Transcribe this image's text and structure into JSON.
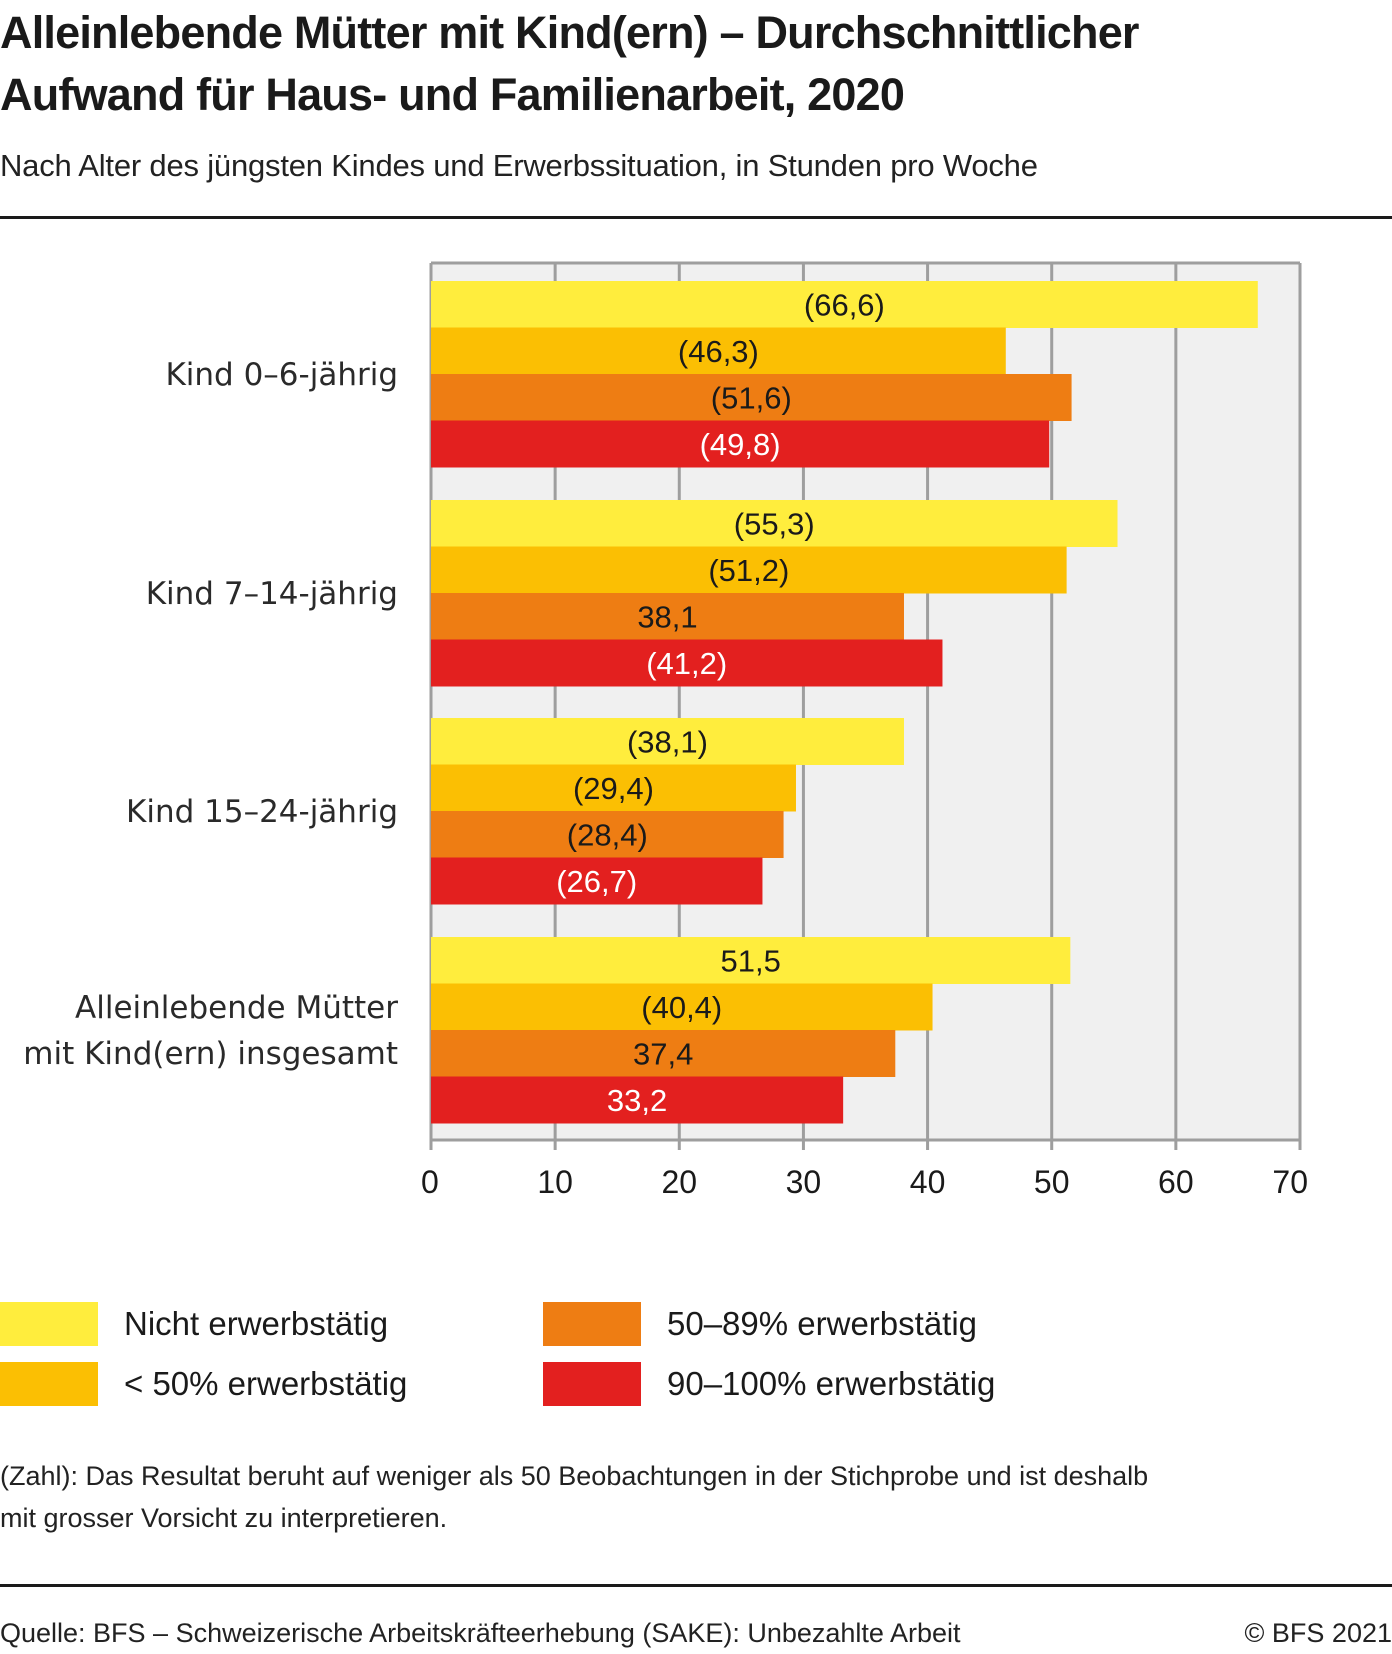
{
  "header": {
    "title_line1": "Alleinlebende Mütter mit Kind(ern) – Durchschnittlicher",
    "title_line2": "Aufwand für Haus- und Familienarbeit, 2020",
    "subtitle": "Nach Alter des jüngsten Kindes und Erwerbssituation, in Stunden pro Woche"
  },
  "chart_data": {
    "type": "bar",
    "orientation": "horizontal",
    "title": "Alleinlebende Mütter mit Kind(ern) – Durchschnittlicher Aufwand für Haus- und Familienarbeit, 2020",
    "subtitle": "Nach Alter des jüngsten Kindes und Erwerbssituation, in Stunden pro Woche",
    "xlabel": "",
    "ylabel": "",
    "xlim": [
      0,
      70
    ],
    "xticks": [
      0,
      10,
      20,
      30,
      40,
      50,
      60,
      70
    ],
    "grid": true,
    "legend_position": "bottom",
    "categories": [
      [
        "Kind 0–6-jährig"
      ],
      [
        "Kind 7–14-jährig"
      ],
      [
        "Kind 15–24-jährig"
      ],
      [
        "Alleinlebende Mütter",
        "mit Kind(ern) insgesamt"
      ]
    ],
    "series": [
      {
        "name": "Nicht erwerbstätig",
        "color": "#FFED3D",
        "label_color": "#1a1a1a",
        "values": [
          66.6,
          55.3,
          38.1,
          51.5
        ],
        "labels": [
          "(66,6)",
          "(55,3)",
          "(38,1)",
          "51,5"
        ]
      },
      {
        "name": "< 50% erwerbstätig",
        "color": "#FBBF03",
        "label_color": "#1a1a1a",
        "values": [
          46.3,
          51.2,
          29.4,
          40.4
        ],
        "labels": [
          "(46,3)",
          "(51,2)",
          "(29,4)",
          "(40,4)"
        ]
      },
      {
        "name": "50–89% erwerbstätig",
        "color": "#EE7D13",
        "label_color": "#1a1a1a",
        "values": [
          51.6,
          38.1,
          28.4,
          37.4
        ],
        "labels": [
          "(51,6)",
          "38,1",
          "(28,4)",
          "37,4"
        ]
      },
      {
        "name": "90–100% erwerbstätig",
        "color": "#E3201F",
        "label_color": "#ffffff",
        "values": [
          49.8,
          41.2,
          26.7,
          33.2
        ],
        "labels": [
          "(49,8)",
          "(41,2)",
          "(26,7)",
          "33,2"
        ]
      }
    ],
    "plot_background": "#F0F0F0",
    "grid_color": "#9E9E9E"
  },
  "legend": {
    "items": [
      {
        "label": "Nicht erwerbstätig",
        "color": "#FFED3D"
      },
      {
        "label": "< 50% erwerbstätig",
        "color": "#FBBF03"
      },
      {
        "label": "50–89% erwerbstätig",
        "color": "#EE7D13"
      },
      {
        "label": "90–100% erwerbstätig",
        "color": "#E3201F"
      }
    ]
  },
  "footnote": {
    "line1": "(Zahl): Das Resultat beruht auf weniger als 50 Beobachtungen in der Stichprobe und ist deshalb",
    "line2": "mit grosser Vorsicht zu interpretieren."
  },
  "footer": {
    "source": "Quelle: BFS – Schweizerische Arbeitskräfteerhebung (SAKE): Unbezahlte Arbeit",
    "copyright": "© BFS 2021"
  }
}
